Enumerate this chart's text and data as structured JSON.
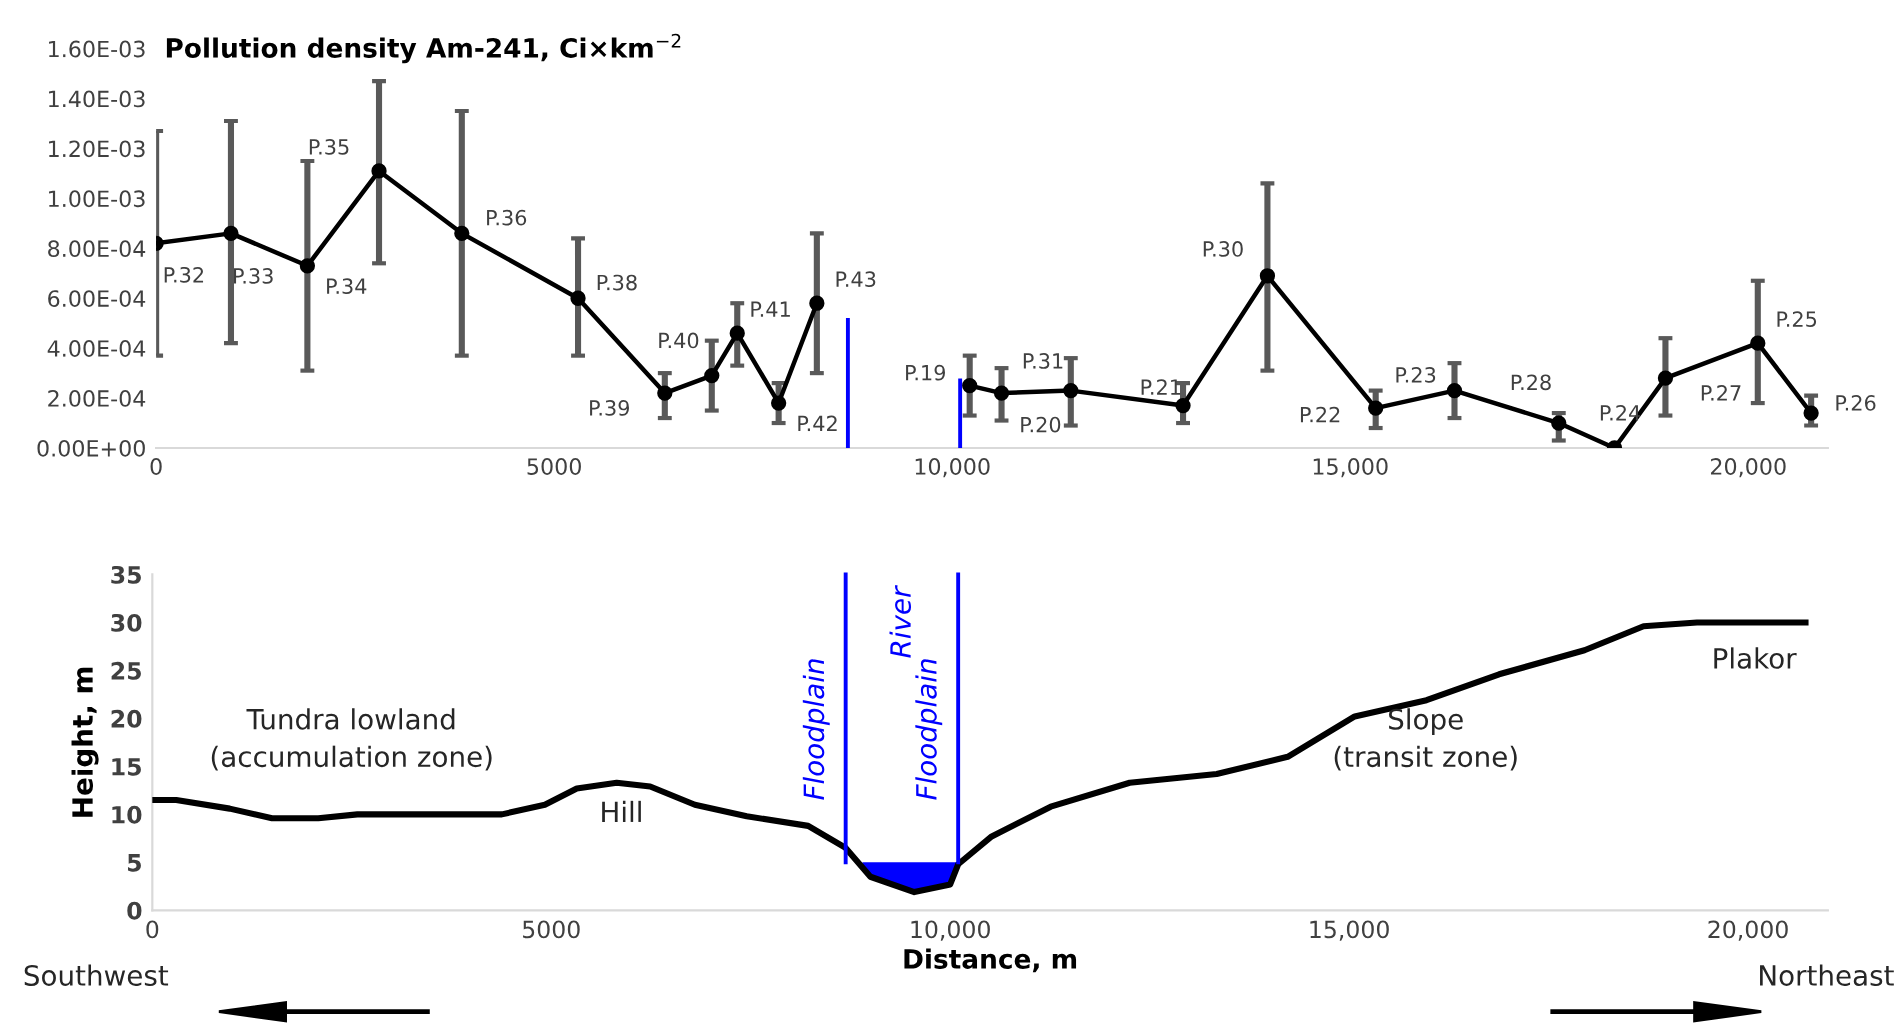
{
  "chart_data": [
    {
      "type": "line",
      "title": "Pollution density Am-241, Ci×km$^{−2}$",
      "xlim": [
        0,
        21000
      ],
      "xticks": [
        0,
        5000,
        {
          "value": 10000,
          "label": "10,000"
        },
        {
          "value": 15000,
          "label": "15,000"
        },
        {
          "value": 20000,
          "label": "20,000"
        }
      ],
      "ylim": [
        0,
        0.0016
      ],
      "yticks": [
        {
          "value": 0,
          "label": "0.00E+00"
        },
        {
          "value": 0.0002,
          "label": "2.00E-04"
        },
        {
          "value": 0.0004,
          "label": "4.00E-04"
        },
        {
          "value": 0.0006,
          "label": "6.00E-04"
        },
        {
          "value": 0.0008,
          "label": "8.00E-04"
        },
        {
          "value": 0.001,
          "label": "1.00E-03"
        },
        {
          "value": 0.0012,
          "label": "1.20E-03"
        },
        {
          "value": 0.0014,
          "label": "1.40E-03"
        },
        {
          "value": 0.0016,
          "label": "1.60E-03"
        }
      ],
      "grid": false,
      "marker": "circle",
      "line_style": "solid",
      "series": [
        {
          "color": "#000000",
          "x": [
            0,
            940,
            1900,
            2800,
            3840,
            5300,
            6390,
            6980,
            7300,
            7820,
            8300,
            null,
            10220,
            10620,
            11490,
            12900,
            13960,
            15320,
            16310,
            17620,
            18320,
            18960,
            20120,
            20790
          ],
          "values": [
            0.00082,
            0.00086,
            0.00073,
            0.00111,
            0.00086,
            0.0006,
            0.00022,
            0.00029,
            0.00046,
            0.00018,
            0.00058,
            null,
            0.00025,
            0.00022,
            0.00023,
            0.00017,
            0.00069,
            0.00016,
            0.00023,
            0.0001,
            0.0,
            0.00028,
            0.00042,
            0.00014
          ],
          "errors": [
            [
              0.00037,
              0.00127
            ],
            [
              0.00042,
              0.00131
            ],
            [
              0.00031,
              0.00115
            ],
            [
              0.00074,
              0.00147
            ],
            [
              0.00037,
              0.00135
            ],
            [
              0.00037,
              0.00084
            ],
            [
              0.00012,
              0.0003
            ],
            [
              0.00015,
              0.00043
            ],
            [
              0.00033,
              0.00058
            ],
            [
              0.0001,
              0.00026
            ],
            [
              0.0003,
              0.00086
            ],
            null,
            [
              0.00013,
              0.00037
            ],
            [
              0.00011,
              0.00032
            ],
            [
              9e-05,
              0.00036
            ],
            [
              0.0001,
              0.00026
            ],
            [
              0.00031,
              0.00106
            ],
            [
              8e-05,
              0.00023
            ],
            [
              0.00012,
              0.00034
            ],
            [
              3e-05,
              0.00014
            ],
            null,
            [
              0.00013,
              0.00044
            ],
            [
              0.00018,
              0.00067
            ],
            [
              9e-05,
              0.00021
            ]
          ]
        }
      ],
      "ref_lines": [
        {
          "axis": "x",
          "value": 8690,
          "color": "#0000ff"
        },
        {
          "axis": "x",
          "value": 10100,
          "color": "#0000ff"
        }
      ],
      "annotations": [
        {
          "text": "P.32",
          "x": 0,
          "y": 0.00082
        },
        {
          "text": "P.33",
          "x": 940,
          "y": 0.00086
        },
        {
          "text": "P.34",
          "x": 1900,
          "y": 0.00073
        },
        {
          "text": "P.35",
          "x": 2800,
          "y": 0.00111
        },
        {
          "text": "P.36",
          "x": 3840,
          "y": 0.00086
        },
        {
          "text": "P.38",
          "x": 5300,
          "y": 0.0006
        },
        {
          "text": "P.39",
          "x": 6390,
          "y": 0.00022
        },
        {
          "text": "P.40",
          "x": 6980,
          "y": 0.00029
        },
        {
          "text": "P.41",
          "x": 7300,
          "y": 0.00046
        },
        {
          "text": "P.42",
          "x": 7820,
          "y": 0.00018
        },
        {
          "text": "P.43",
          "x": 8300,
          "y": 0.00058
        },
        {
          "text": "P.19",
          "x": 10220,
          "y": 0.00025
        },
        {
          "text": "P.20",
          "x": 10620,
          "y": 0.00022
        },
        {
          "text": "P.31",
          "x": 11490,
          "y": 0.00023
        },
        {
          "text": "P.21",
          "x": 12900,
          "y": 0.00017
        },
        {
          "text": "P.30",
          "x": 13960,
          "y": 0.00069
        },
        {
          "text": "P.22",
          "x": 15320,
          "y": 0.00016
        },
        {
          "text": "P.23",
          "x": 16310,
          "y": 0.00023
        },
        {
          "text": "P.28",
          "x": 17620,
          "y": 0.0001
        },
        {
          "text": "P.24",
          "x": 18320,
          "y": 0.0
        },
        {
          "text": "P.27",
          "x": 18960,
          "y": 0.00028
        },
        {
          "text": "P.25",
          "x": 20120,
          "y": 0.00042
        },
        {
          "text": "P.26",
          "x": 20790,
          "y": 0.00014
        }
      ]
    },
    {
      "type": "line",
      "xlabel": "Distance, m",
      "ylabel": "Height, m",
      "xlim": [
        0,
        21000
      ],
      "xticks": [
        0,
        5000,
        {
          "value": 10000,
          "label": "10,000"
        },
        {
          "value": 15000,
          "label": "15,000"
        },
        {
          "value": 20000,
          "label": "20,000"
        }
      ],
      "ylim": [
        0,
        35
      ],
      "yticks": [
        0,
        5,
        10,
        15,
        20,
        25,
        30,
        35
      ],
      "grid": false,
      "marker": "none",
      "line_style": "solid",
      "series": [
        {
          "type": "area",
          "color": "#0000ff",
          "x": [
            8900,
            9000,
            9550,
            10000,
            10100
          ],
          "values": [
            5,
            5,
            5,
            5,
            5
          ]
        },
        {
          "type": "line",
          "color": "#000000",
          "x": [
            0,
            300,
            970,
            1500,
            2080,
            2570,
            4380,
            4920,
            5320,
            5820,
            6240,
            6800,
            7450,
            8220,
            8690,
            9000,
            9550,
            10000,
            10100,
            10520,
            11260,
            12250,
            13340,
            14230,
            15070,
            15970,
            16880,
            17950,
            18690,
            19360,
            20720
          ],
          "values": [
            11.5,
            11.5,
            10.6,
            9.6,
            9.6,
            10.0,
            10.0,
            11.0,
            12.7,
            13.3,
            12.9,
            11.0,
            9.8,
            8.8,
            6.5,
            3.5,
            1.9,
            2.7,
            4.8,
            7.7,
            10.8,
            13.3,
            14.2,
            16.0,
            20.2,
            21.9,
            24.6,
            27.1,
            29.6,
            30.0,
            30.0
          ]
        }
      ],
      "ref_lines": [
        {
          "axis": "x",
          "value": 8690,
          "label": "Floodplain",
          "color": "#0000ff"
        },
        {
          "axis": "x",
          "value": 10100,
          "label": "Floodplain",
          "color": "#0000ff"
        }
      ],
      "annotations": [
        "River",
        "Tundra lowland\n(accumulation zone)",
        "Hill",
        "Slope\n(transit zone)",
        "Plakor",
        "Southwest",
        "Northeast"
      ]
    }
  ]
}
